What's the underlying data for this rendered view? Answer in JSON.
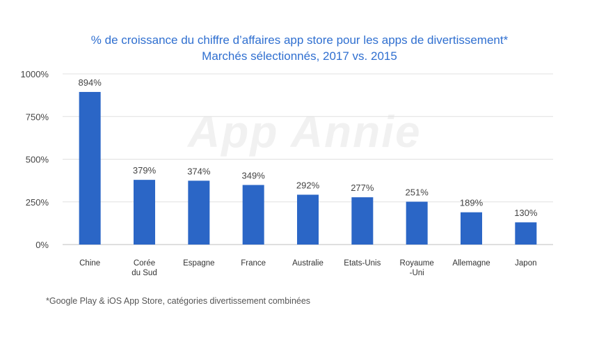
{
  "chart_data": {
    "type": "bar",
    "title": "% de croissance du chiffre d’affaires app store pour les apps de divertissement*",
    "subtitle": "Marchés sélectionnés, 2017 vs. 2015",
    "categories": [
      [
        "Chine"
      ],
      [
        "Corée",
        "du Sud"
      ],
      [
        "Espagne"
      ],
      [
        "France"
      ],
      [
        "Australie"
      ],
      [
        "Etats-Unis"
      ],
      [
        "Royaume",
        "-Uni"
      ],
      [
        "Allemagne"
      ],
      [
        "Japon"
      ]
    ],
    "values": [
      894,
      379,
      374,
      349,
      292,
      277,
      251,
      189,
      130
    ],
    "value_labels": [
      "894%",
      "379%",
      "374%",
      "349%",
      "292%",
      "277%",
      "251%",
      "189%",
      "130%"
    ],
    "ylim": [
      0,
      1000
    ],
    "yticks": [
      0,
      250,
      500,
      750,
      1000
    ],
    "ytick_labels": [
      "0%",
      "250%",
      "500%",
      "750%",
      "1000%"
    ],
    "grid": true,
    "bar_color": "#2b66c6",
    "title_color": "#2f6fd0"
  },
  "footnote": "*Google Play & iOS App Store, catégories divertissement combinées",
  "watermark": "App Annie"
}
